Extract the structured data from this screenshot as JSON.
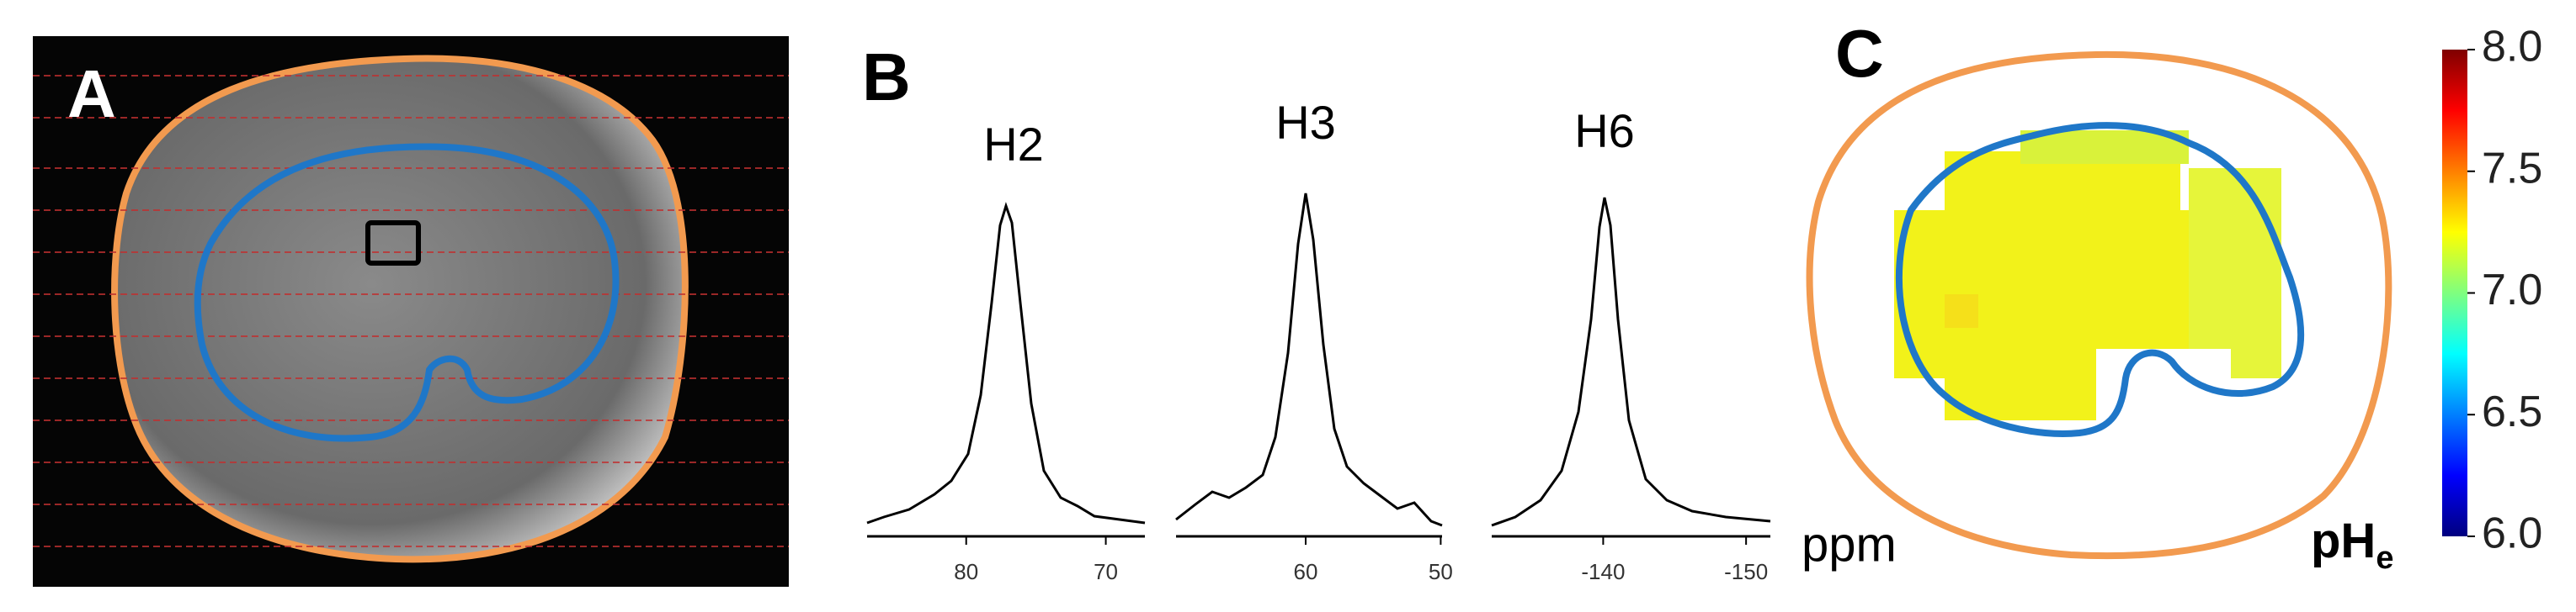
{
  "panels": {
    "A": {
      "label": "A"
    },
    "B": {
      "label": "B",
      "x_label": "ppm",
      "spectra": [
        {
          "title": "H2",
          "xlim": [
            87.1,
            67.2
          ],
          "xticks": [
            80,
            70
          ]
        },
        {
          "title": "H3",
          "xlim": [
            69.6,
            49.9
          ],
          "xticks": [
            60,
            50
          ]
        },
        {
          "title": "H6",
          "xlim": [
            -132.2,
            -151.7
          ],
          "xticks": [
            -140,
            -150
          ]
        }
      ]
    },
    "C": {
      "label": "C",
      "colorbar": {
        "label": {
          "base": "pH",
          "subscript": "e"
        },
        "lim": [
          6,
          8
        ],
        "ticks": [
          {
            "value": 6,
            "label": "6.0"
          },
          {
            "value": 6.5,
            "label": "6.5"
          },
          {
            "value": 7,
            "label": "7.0"
          },
          {
            "value": 7.5,
            "label": "7.5"
          },
          {
            "value": 8,
            "label": "8.0"
          }
        ]
      }
    }
  }
}
